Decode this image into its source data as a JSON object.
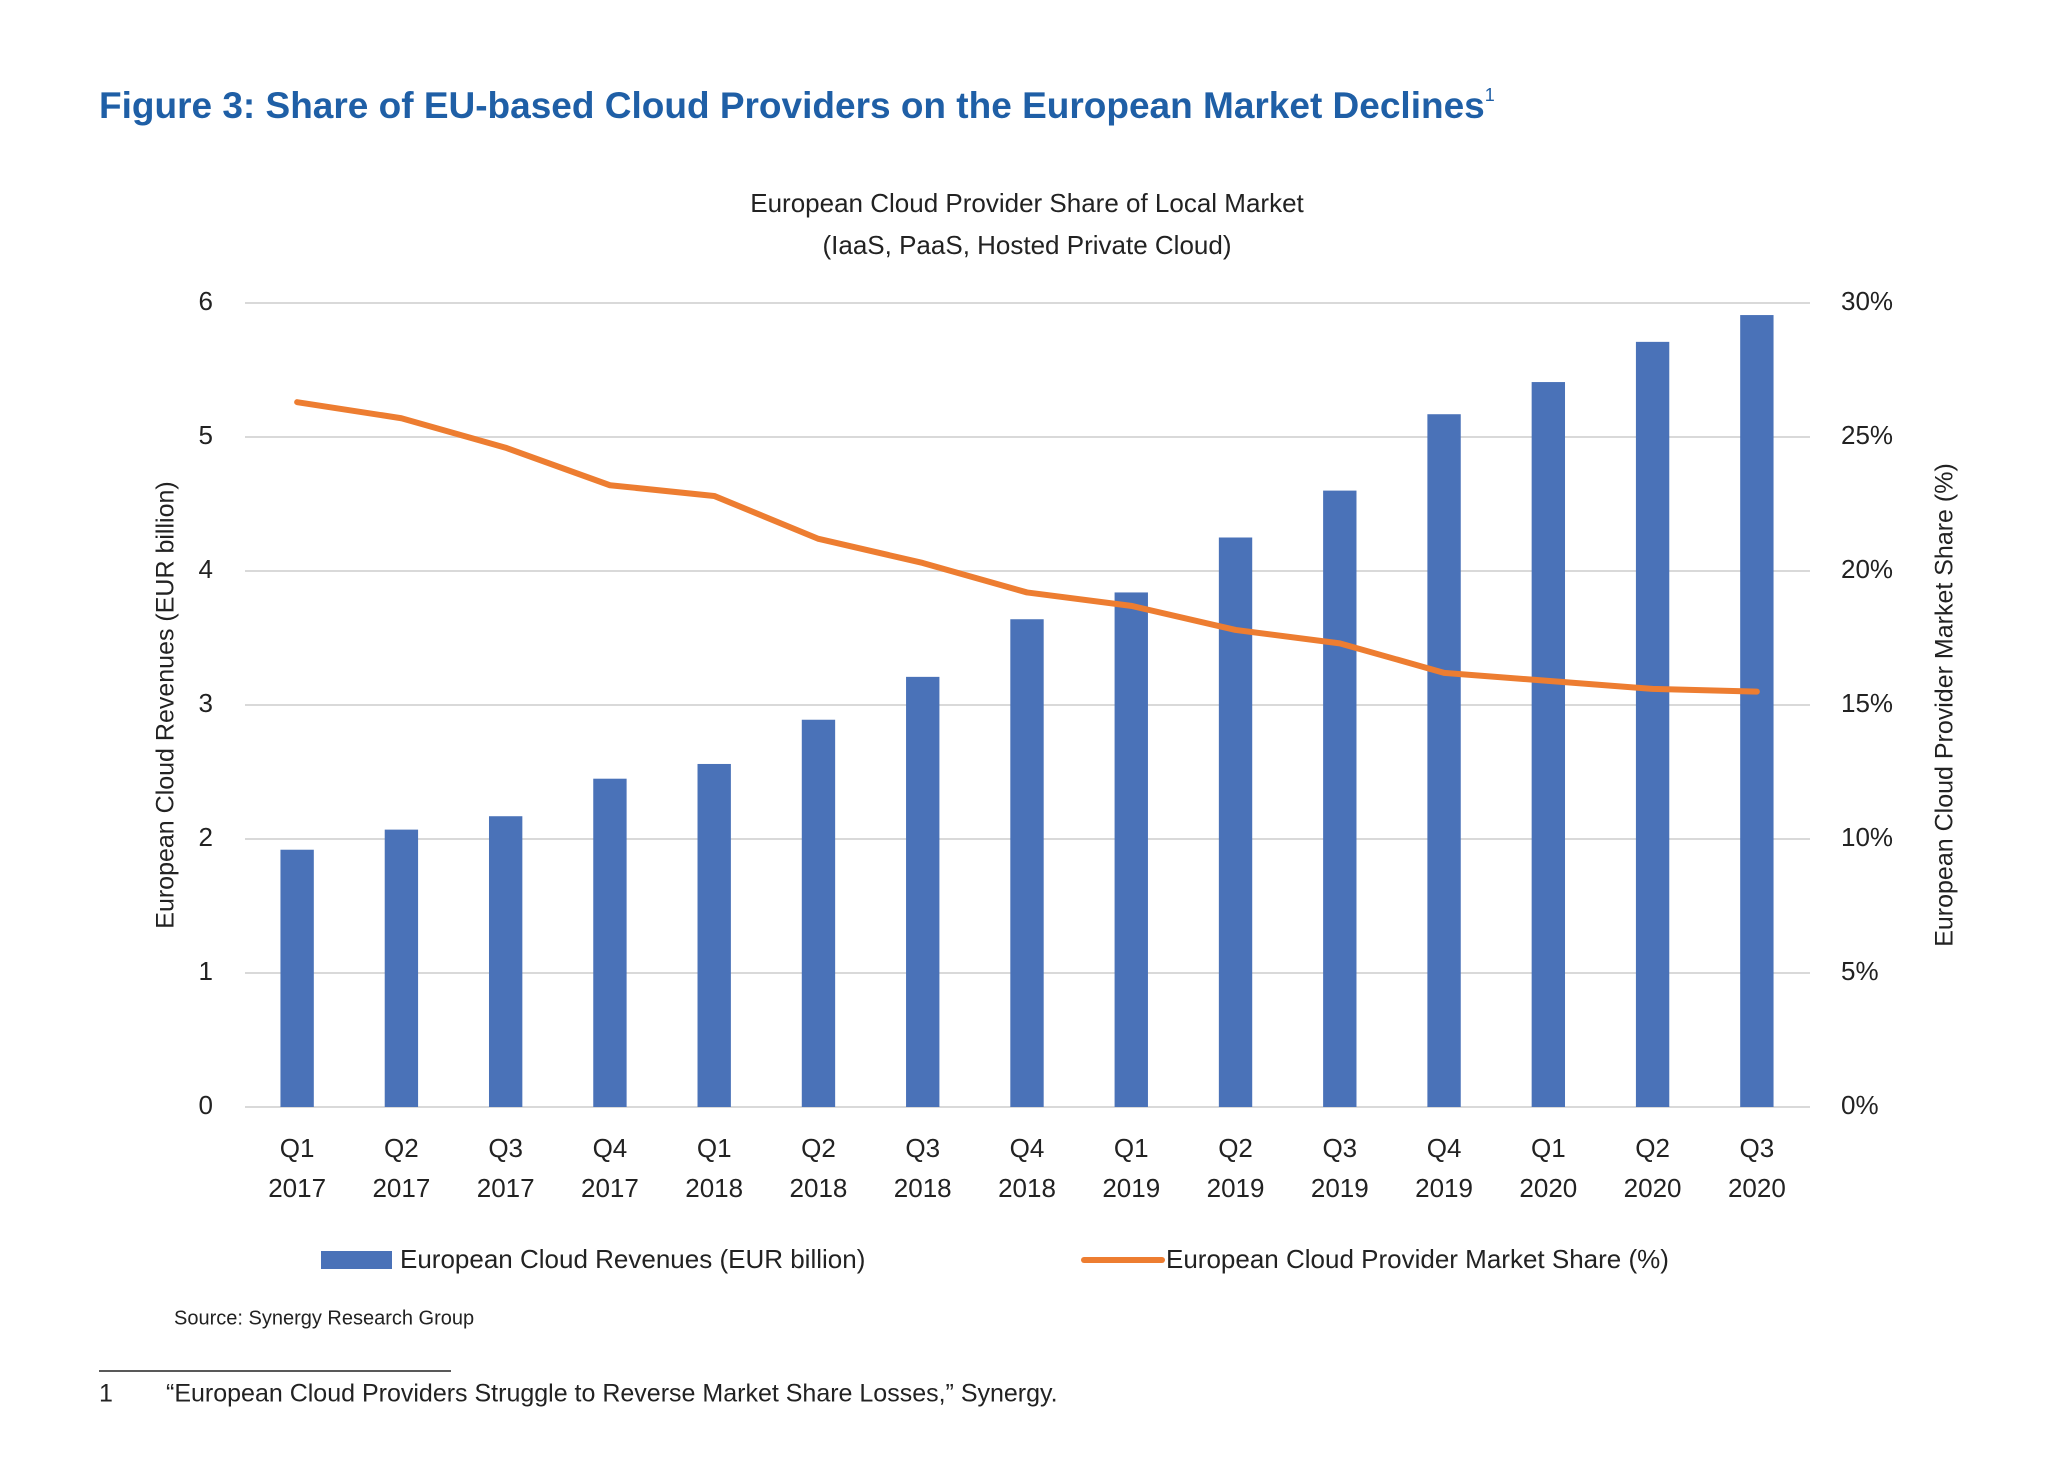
{
  "chart_data": {
    "type": "bar_line",
    "figure_title": "Figure 3: Share of EU-based Cloud Providers on the European Market Declines",
    "figure_title_footnote_mark": "1",
    "title": "European Cloud Provider Share of Local Market",
    "subtitle": "(IaaS, PaaS, Hosted Private Cloud)",
    "y_label": "European Cloud Revenues (EUR billion)",
    "y2_label": "European Cloud Provider Market Share (%)",
    "categories": [
      [
        "Q1",
        "2017"
      ],
      [
        "Q2",
        "2017"
      ],
      [
        "Q3",
        "2017"
      ],
      [
        "Q4",
        "2017"
      ],
      [
        "Q1",
        "2018"
      ],
      [
        "Q2",
        "2018"
      ],
      [
        "Q3",
        "2018"
      ],
      [
        "Q4",
        "2018"
      ],
      [
        "Q1",
        "2019"
      ],
      [
        "Q2",
        "2019"
      ],
      [
        "Q3",
        "2019"
      ],
      [
        "Q4",
        "2019"
      ],
      [
        "Q1",
        "2020"
      ],
      [
        "Q2",
        "2020"
      ],
      [
        "Q3",
        "2020"
      ]
    ],
    "series": [
      {
        "name": "European Cloud Revenues (EUR billion)",
        "type": "bar",
        "color": "#4a72b8",
        "values": [
          1.92,
          2.07,
          2.17,
          2.45,
          2.56,
          2.89,
          3.21,
          3.64,
          3.84,
          4.25,
          4.6,
          5.17,
          5.41,
          5.71,
          5.91
        ]
      },
      {
        "name": "European Cloud Provider Market Share (%)",
        "type": "line",
        "axis": "y2",
        "color": "#ed7d31",
        "values": [
          26.3,
          25.7,
          24.6,
          23.2,
          22.8,
          21.2,
          20.3,
          19.2,
          18.7,
          17.8,
          17.3,
          16.2,
          15.9,
          15.6,
          15.5
        ]
      }
    ],
    "ylim": [
      0,
      6
    ],
    "yticks": [
      0,
      1,
      2,
      3,
      4,
      5,
      6
    ],
    "y2lim": [
      0,
      30
    ],
    "y2ticks": [
      {
        "value": 0,
        "label": "0%"
      },
      {
        "value": 5,
        "label": "5%"
      },
      {
        "value": 10,
        "label": "10%"
      },
      {
        "value": 15,
        "label": "15%"
      },
      {
        "value": 20,
        "label": "20%"
      },
      {
        "value": 25,
        "label": "25%"
      },
      {
        "value": 30,
        "label": "30%"
      }
    ],
    "grid": true,
    "legend": "bottom",
    "source": "Source: Synergy Research Group",
    "footnote": {
      "number": "1",
      "text": "“European Cloud Providers Struggle to Reverse Market Share Losses,” Synergy."
    }
  }
}
